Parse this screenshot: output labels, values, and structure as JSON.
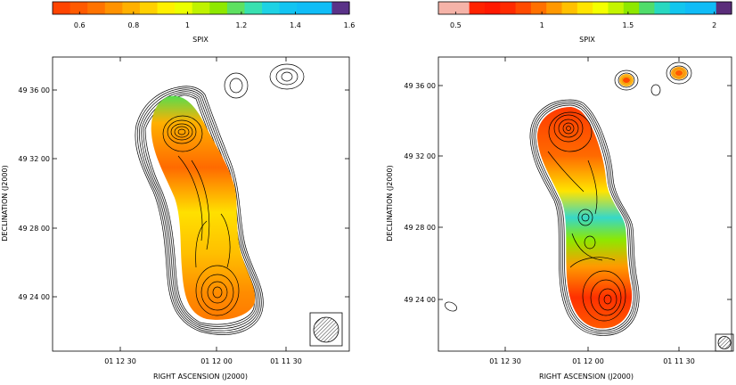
{
  "chart_data": [
    {
      "type": "heatmap",
      "colorbar": {
        "label": "SPIX",
        "ticks": [
          "0.6",
          "0.8",
          "1",
          "1.2",
          "1.4",
          "1.6"
        ],
        "tick_values": [
          0.6,
          0.8,
          1.0,
          1.2,
          1.4,
          1.6
        ],
        "range": [
          0.5,
          1.6
        ],
        "colors": [
          "#ff4400",
          "#ff5a00",
          "#ff7300",
          "#ff9200",
          "#ffb000",
          "#ffd000",
          "#fff000",
          "#ecff00",
          "#bff200",
          "#8ee800",
          "#5ee060",
          "#38e0b0",
          "#1ed2e4",
          "#12c4f2",
          "#10bdf7",
          "#10bdf7",
          "#5a3288"
        ]
      },
      "xlabel": "RIGHT ASCENSION  (J2000)",
      "ylabel": "DECLINATION  (J2000)",
      "x_ticks": [
        "01 12 30",
        "01 12 00",
        "01 11 30"
      ],
      "y_ticks": [
        "49 36 00",
        "49 32 00",
        "49 28 00",
        "49 24 00"
      ],
      "beam": "circular"
    },
    {
      "type": "heatmap",
      "colorbar": {
        "label": "SPIX",
        "ticks": [
          "0.5",
          "1",
          "1.5",
          "2"
        ],
        "tick_values": [
          0.5,
          1.0,
          1.5,
          2.0
        ],
        "range": [
          0.4,
          2.1
        ],
        "colors": [
          "#f5b3a8",
          "#f5b3a8",
          "#ff2200",
          "#ff1800",
          "#ff2a00",
          "#ff4a00",
          "#ff7000",
          "#ff9800",
          "#ffc000",
          "#ffe400",
          "#f4ff00",
          "#c4f400",
          "#8ee800",
          "#50dc6a",
          "#28d8c0",
          "#12c6ee",
          "#10bcf7",
          "#10bcf7",
          "#5a2d7a"
        ]
      },
      "xlabel": "RIGHT ASCENSION  (J2000)",
      "ylabel": "DECLINATION  (J2000)",
      "x_ticks": [
        "01 12 30",
        "01 12 00",
        "01 11 30"
      ],
      "y_ticks": [
        "49 36 00",
        "49 32 00",
        "49 28 00",
        "49 24 00"
      ],
      "beam": "circular"
    }
  ]
}
